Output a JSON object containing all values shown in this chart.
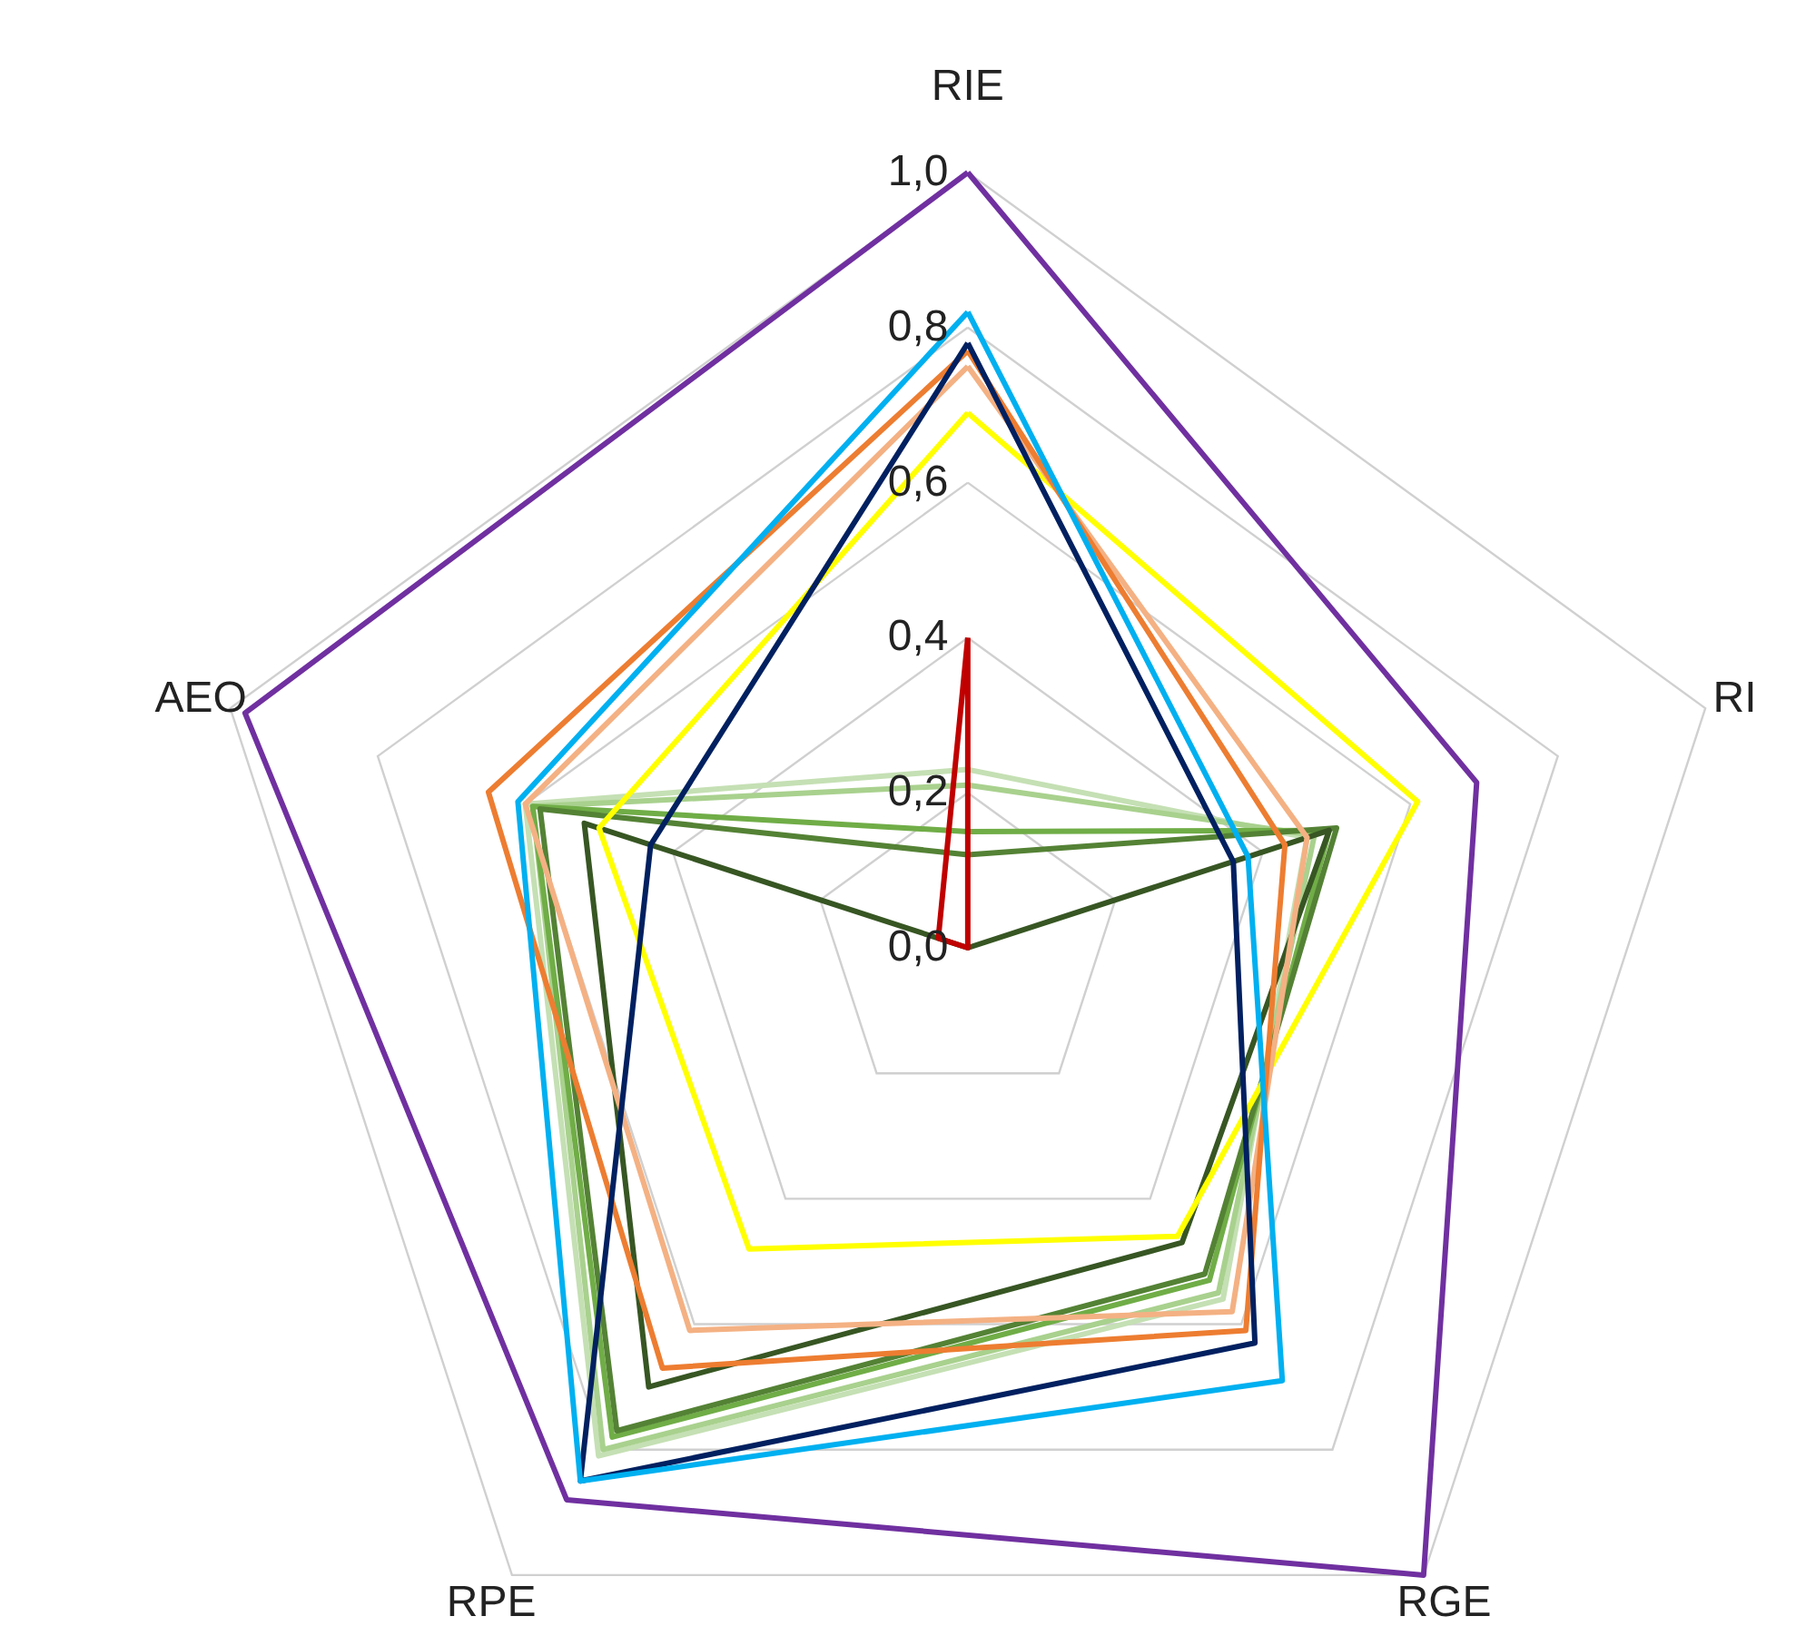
{
  "chart_data": {
    "type": "radar",
    "categories": [
      "RIE",
      "RI",
      "RGE",
      "RPE",
      "AEO"
    ],
    "series": [
      {
        "color": "#c5e0b4",
        "values": [
          0.23,
          0.46,
          0.56,
          0.81,
          0.6
        ]
      },
      {
        "color": "#a9d18e",
        "values": [
          0.21,
          0.47,
          0.55,
          0.8,
          0.59
        ]
      },
      {
        "color": "#70ad47",
        "values": [
          0.15,
          0.49,
          0.53,
          0.78,
          0.59
        ]
      },
      {
        "color": "#548235",
        "values": [
          0.12,
          0.5,
          0.52,
          0.77,
          0.58
        ]
      },
      {
        "color": "#375623",
        "values": [
          0,
          0.49,
          0.47,
          0.7,
          0.52
        ]
      },
      {
        "color": "#c00000",
        "values": [
          0.4,
          0,
          0,
          0,
          0.04
        ]
      },
      {
        "color": "#ffff00",
        "values": [
          0.69,
          0.61,
          0.46,
          0.48,
          0.5
        ]
      },
      {
        "color": "#f4b183",
        "values": [
          0.75,
          0.46,
          0.58,
          0.61,
          0.6
        ]
      },
      {
        "color": "#ed7d31",
        "values": [
          0.77,
          0.43,
          0.61,
          0.67,
          0.65
        ]
      },
      {
        "color": "#002060",
        "values": [
          0.78,
          0.36,
          0.63,
          0.85,
          0.43
        ]
      },
      {
        "color": "#00b0f0",
        "values": [
          0.82,
          0.38,
          0.69,
          0.85,
          0.61
        ]
      },
      {
        "color": "#7030a0",
        "values": [
          1.0,
          0.69,
          1.0,
          0.88,
          0.98
        ]
      }
    ],
    "ylim": [
      0,
      1
    ],
    "yticks": [
      {
        "value": 0,
        "label": "0,0"
      },
      {
        "value": 0.2,
        "label": "0,2"
      },
      {
        "value": 0.4,
        "label": "0,4"
      },
      {
        "value": 0.6,
        "label": "0,6"
      },
      {
        "value": 0.8,
        "label": "0,8"
      },
      {
        "value": 1,
        "label": "1,0"
      }
    ],
    "grid": true
  }
}
